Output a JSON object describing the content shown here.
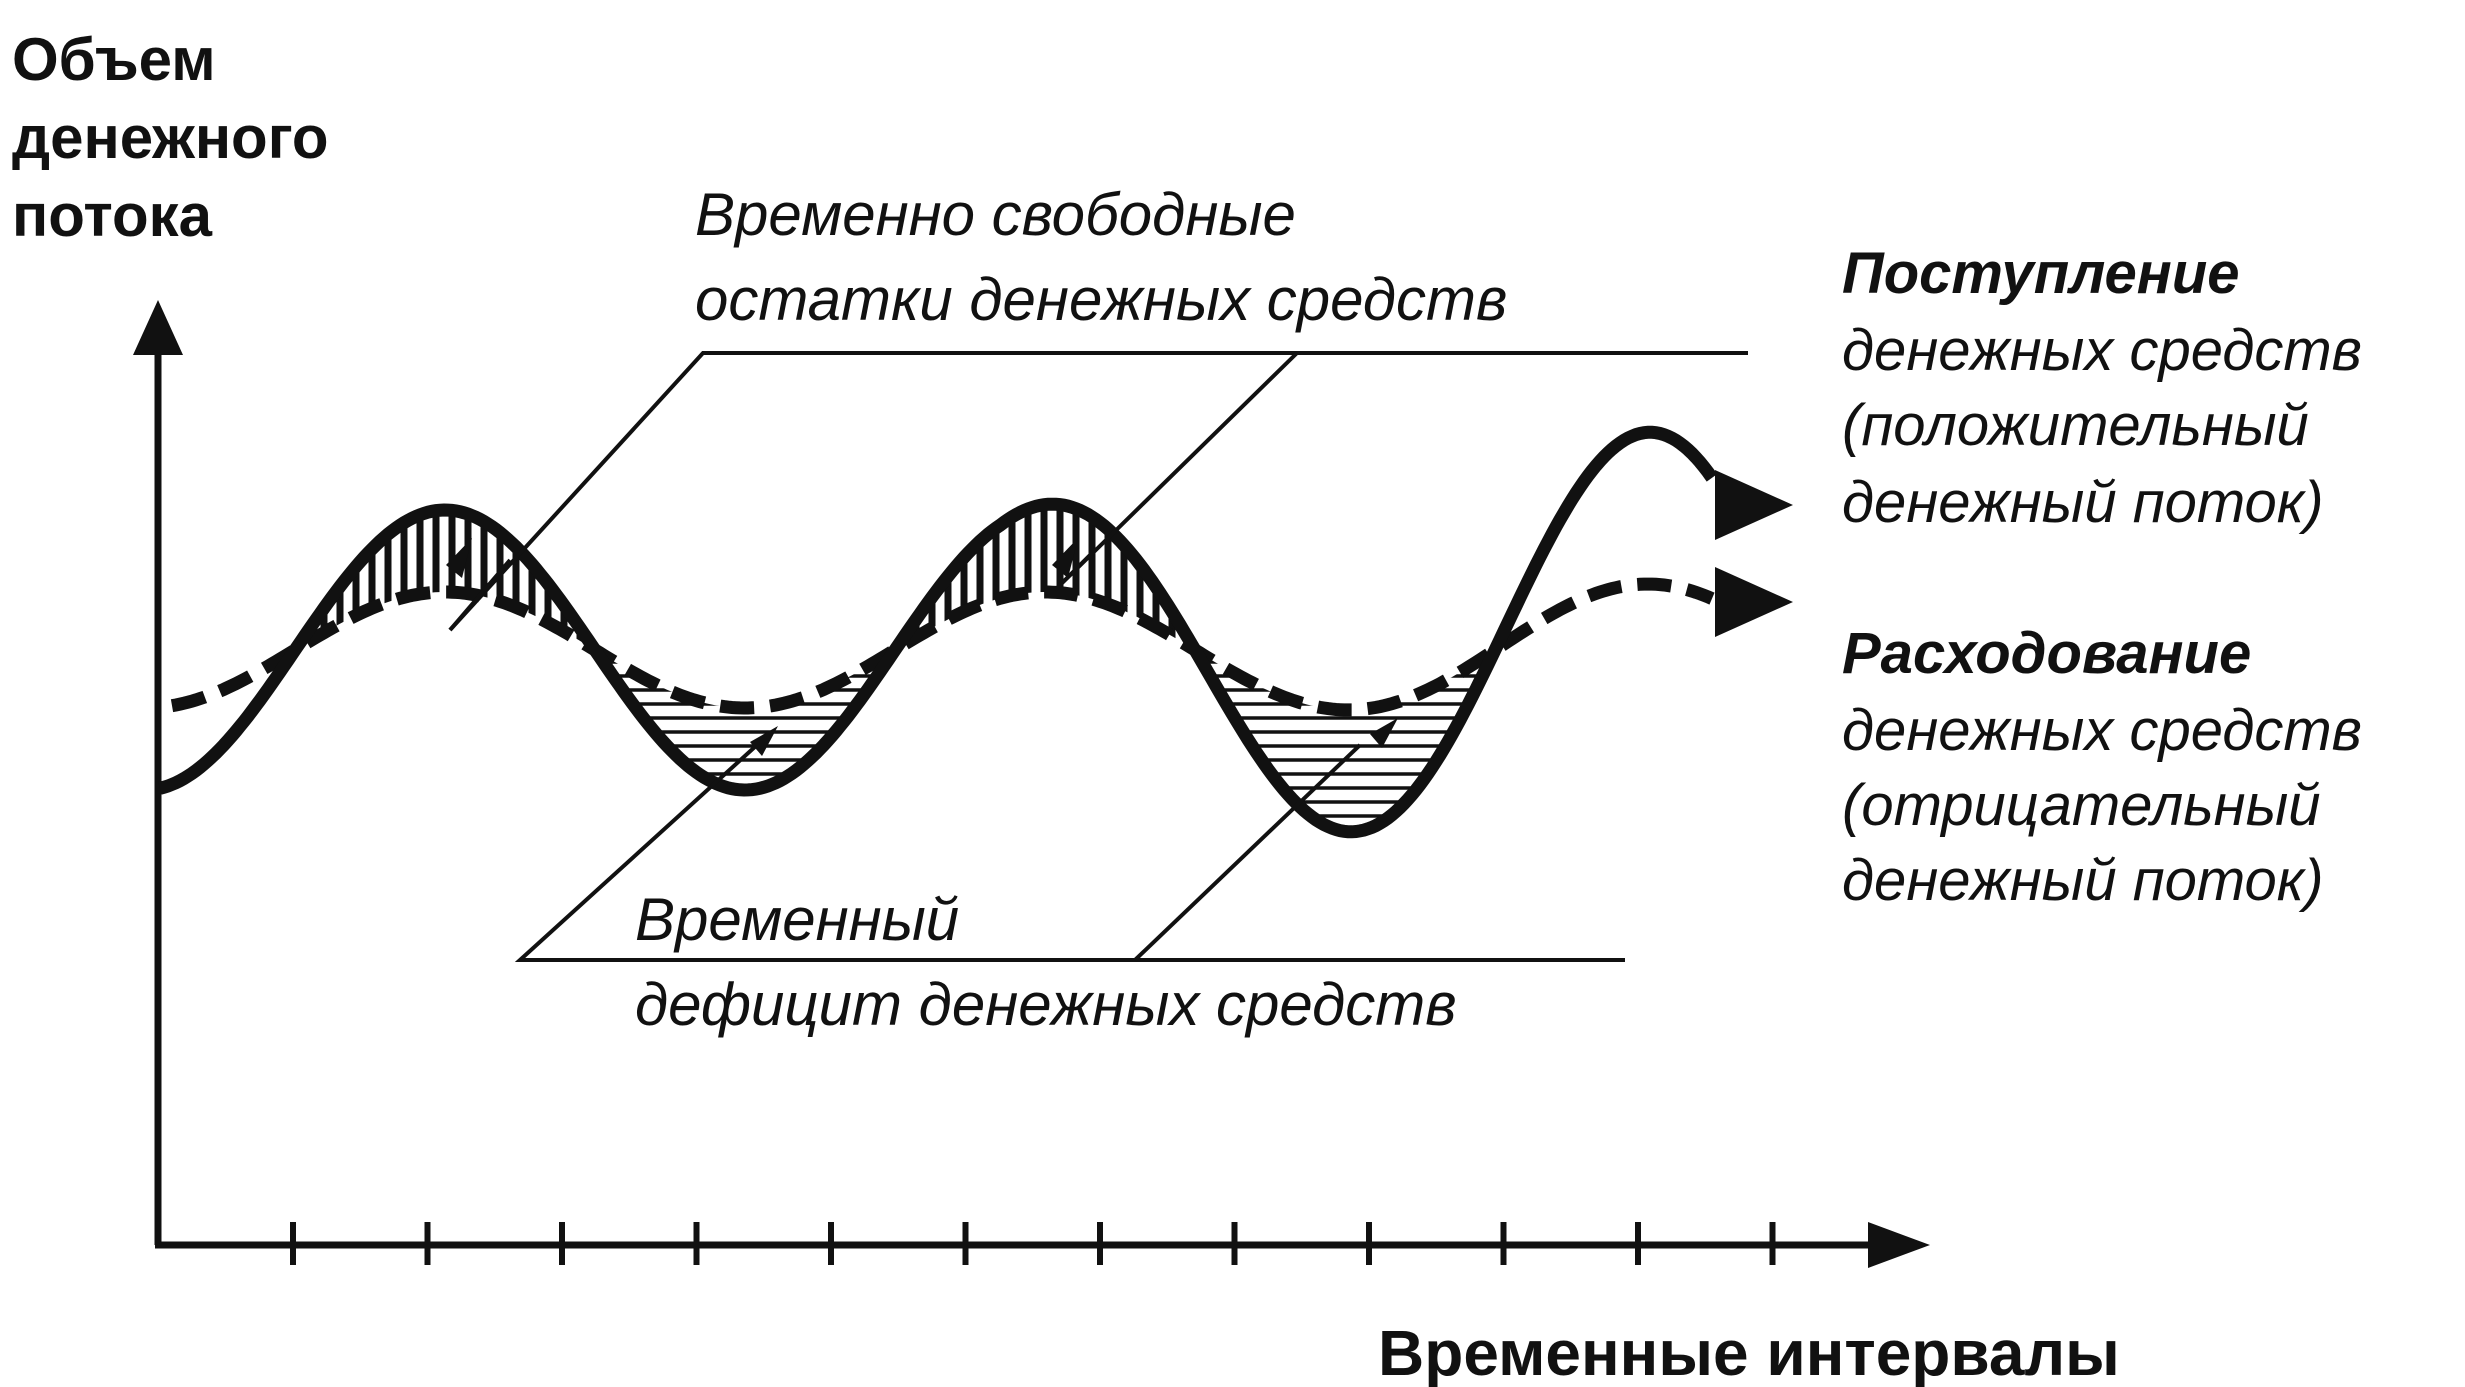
{
  "y_axis_label": [
    "Объем",
    "денежного",
    "потока"
  ],
  "x_axis_label": "Временные интервалы",
  "surplus_label": [
    "Временно свободные",
    "остатки денежных средств"
  ],
  "deficit_label": [
    "Временный",
    "дефицит денежных средств"
  ],
  "legend": {
    "inflow": {
      "title": "Поступление",
      "lines": [
        "денежных средств",
        "(положительный",
        "денежный поток)"
      ]
    },
    "outflow": {
      "title": "Расходование",
      "lines": [
        "денежных средств",
        "(отрицательный",
        "денежный поток)"
      ]
    }
  },
  "colors": {
    "ink": "#111111",
    "background": "#ffffff"
  }
}
